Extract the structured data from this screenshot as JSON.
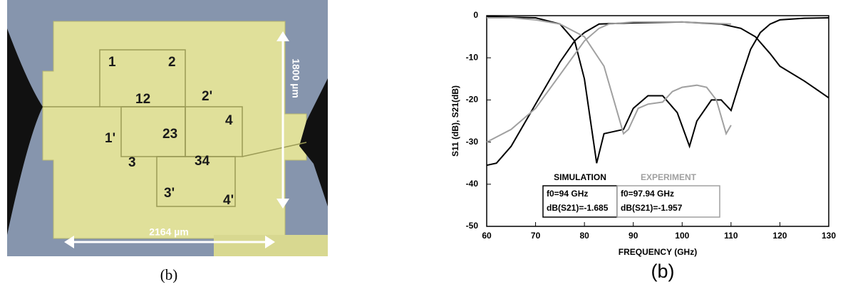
{
  "photo": {
    "labels": [
      "1",
      "2",
      "12",
      "2'",
      "1'",
      "23",
      "4",
      "3",
      "34",
      "3'",
      "4'"
    ],
    "height_label": "1800 µm",
    "width_label": "2164 µm",
    "caption": "(b)"
  },
  "chart_data": {
    "type": "line",
    "caption": "(b)",
    "x_label": "FREQUENCY (GHz)",
    "y_label": "S11 (dB), S21(dB)",
    "xlim": [
      60,
      130
    ],
    "xticks": [
      60,
      70,
      80,
      90,
      100,
      110,
      120,
      130
    ],
    "ylim": [
      -50,
      0
    ],
    "yticks": [
      0,
      -10,
      -20,
      -30,
      -40,
      -50
    ],
    "series": [
      {
        "color": "#000000",
        "x": [
          60,
          70,
          75,
          78,
          80,
          82.5,
          84,
          86,
          88,
          90,
          93,
          96,
          99,
          101.5,
          103,
          106,
          108,
          110,
          112,
          114,
          116,
          118,
          120,
          125,
          130
        ],
        "values": [
          -0.2,
          -0.5,
          -2,
          -6,
          -15,
          -35,
          -28,
          -27.5,
          -27,
          -22,
          -19,
          -19,
          -23,
          -31,
          -25,
          -20,
          -20,
          -22.5,
          -15,
          -8,
          -4,
          -2,
          -1,
          -0.6,
          -0.5
        ]
      },
      {
        "color": "#000000",
        "x": [
          60,
          62,
          65,
          70,
          75,
          78,
          80,
          83,
          90,
          100,
          108,
          112,
          115,
          118,
          120,
          125,
          130
        ],
        "values": [
          -35.5,
          -35,
          -31,
          -21,
          -11,
          -6,
          -4,
          -2,
          -1.7,
          -1.5,
          -2,
          -3,
          -5,
          -9,
          -12,
          -15.5,
          -19.5
        ]
      },
      {
        "color": "#a0a0a0",
        "x": [
          60,
          65,
          70,
          75,
          80,
          83,
          85,
          90,
          100,
          110
        ],
        "values": [
          -30,
          -27,
          -22,
          -14,
          -6,
          -3,
          -2,
          -1.5,
          -1.5,
          -2
        ]
      },
      {
        "color": "#a0a0a0",
        "x": [
          60,
          65,
          70,
          75,
          80,
          84,
          86,
          88,
          89,
          91,
          93,
          96,
          98,
          100,
          103,
          105,
          107,
          109,
          110
        ],
        "values": [
          -0.5,
          -0.5,
          -1,
          -2,
          -5,
          -12,
          -20,
          -28,
          -27,
          -22,
          -21,
          -20.5,
          -18,
          -17,
          -16.5,
          -17,
          -20,
          -28,
          -26
        ]
      }
    ],
    "annotations": [
      {
        "title": "SIMULATION",
        "color": "#000000",
        "lines": [
          "f0=94 GHz",
          "dB(S21)=-1.685"
        ]
      },
      {
        "title": "EXPERIMENT",
        "color": "#a0a0a0",
        "lines": [
          "f0=97.94 GHz",
          "dB(S21)=-1.957"
        ]
      }
    ]
  }
}
